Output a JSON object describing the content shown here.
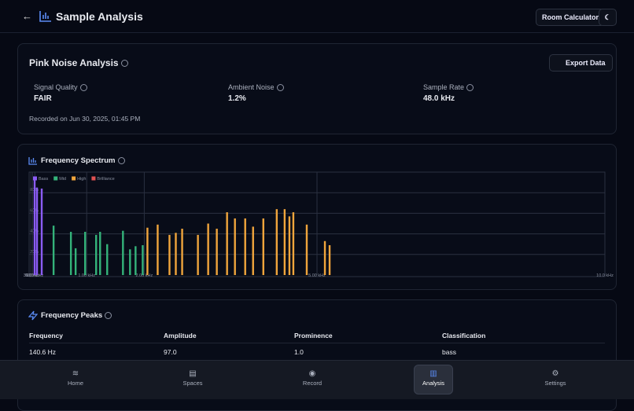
{
  "header": {
    "title": "Sample Analysis",
    "room_button": "Room Calculator"
  },
  "summary": {
    "title": "Pink Noise Analysis",
    "export_button": "Export Data",
    "stats": [
      {
        "label": "Signal Quality",
        "value": "FAIR"
      },
      {
        "label": "Ambient Noise",
        "value": "1.2%"
      },
      {
        "label": "Sample Rate",
        "value": "48.0 kHz"
      }
    ],
    "recorded": "Recorded on Jun 30, 2025, 01:45 PM"
  },
  "chart_data": {
    "type": "bar",
    "title": "Frequency Spectrum",
    "xlim": [
      0,
      10000
    ],
    "ylim": [
      0,
      100
    ],
    "xticks": [
      {
        "value": 30,
        "label": "30.0 Hz"
      },
      {
        "value": 60,
        "label": "60.0 Hz"
      },
      {
        "value": 100,
        "label": "100.0 Hz"
      },
      {
        "value": 1000,
        "label": "1.00 kHz"
      },
      {
        "value": 2000,
        "label": "2.00 kHz"
      },
      {
        "value": 5000,
        "label": "5.00 kHz"
      },
      {
        "value": 10000,
        "label": "10.0 kHz"
      }
    ],
    "yticks": [
      {
        "value": 20,
        "label": "20%"
      },
      {
        "value": 40,
        "label": "40%"
      },
      {
        "value": 60,
        "label": "60%"
      },
      {
        "value": 80,
        "label": "80%"
      }
    ],
    "grid": true,
    "series": [
      {
        "name": "Bass",
        "color": "#8b5cf6",
        "x": [
          96,
          137,
          219
        ],
        "values": [
          93,
          85,
          84
        ]
      },
      {
        "name": "Mid",
        "color": "#34b37a",
        "x": [
          425,
          726,
          808,
          973,
          1164,
          1233,
          1356,
          1630,
          1753,
          1849,
          1973
        ],
        "values": [
          48,
          42,
          26,
          42,
          39,
          42,
          30,
          43,
          25,
          28,
          29
        ]
      },
      {
        "name": "High",
        "color": "#f0a53c",
        "x": [
          2055,
          2233,
          2438,
          2548,
          2658,
          2932,
          3110,
          3260,
          3438,
          3575,
          3753,
          3890,
          4068,
          4301,
          4438,
          4521,
          4589,
          4822,
          5137,
          5219
        ],
        "values": [
          46,
          49,
          39,
          41,
          45,
          39,
          50,
          45,
          61,
          55,
          55,
          47,
          55,
          64,
          64,
          57,
          61,
          49,
          33,
          29
        ]
      },
      {
        "name": "Brilliance",
        "color": "#e05252",
        "x": [],
        "values": []
      }
    ]
  },
  "peaks": {
    "title": "Frequency Peaks",
    "headers": [
      "Frequency",
      "Amplitude",
      "Prominence",
      "Classification"
    ],
    "rows": [
      [
        "140.6 Hz",
        "97.0",
        "1.0",
        "bass"
      ]
    ]
  },
  "nav": [
    "Home",
    "Spaces",
    "Record",
    "Analysis",
    "Settings"
  ]
}
